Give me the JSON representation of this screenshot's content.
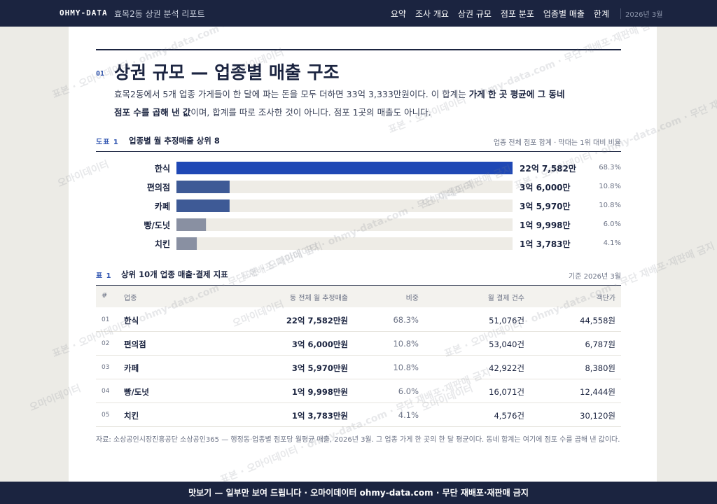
{
  "header": {
    "brand": "OHMY-DATA",
    "title": "효목2동 상권 분석 리포트",
    "links": [
      "요약",
      "조사 개요",
      "상권 규모",
      "점포 분포",
      "업종별 매출",
      "한계"
    ],
    "date": "2026년 3월"
  },
  "section": {
    "number": "01",
    "title": "상권 규모 — 업종별 매출 구조",
    "paragraph": [
      "효목2동에서 5개 업종 가게들이 한 달에 파는 돈을 모두 더하면 33억 3,333만원이다. 이 합계는 ",
      "가게 한 곳 평균에 그 동네 점포 수를 곱해 낸 값",
      "이며, 합계를 따로 조사한 것이 아니다. 점포 1곳의 매출도 아니다."
    ]
  },
  "chart_data": {
    "type": "bar",
    "label": "도표 1",
    "title": "업종별 월 추정매출 상위 8",
    "note": "업종 전체 점포 합계 · 막대는 1위 대비 비율",
    "categories": [
      "한식",
      "편의점",
      "카페",
      "빵/도넛",
      "치킨"
    ],
    "values": [
      2275820000,
      360000000,
      359700000,
      199980000,
      137830000
    ],
    "value_labels": [
      "22억 7,582만",
      "3억 6,000만",
      "3억 5,970만",
      "1억 9,998만",
      "1억 3,783만"
    ],
    "shares": [
      68.3,
      10.8,
      10.8,
      6.0,
      4.1
    ],
    "share_labels": [
      "68.3%",
      "10.8%",
      "10.8%",
      "6.0%",
      "4.1%"
    ],
    "colors": [
      "#1f48b5",
      "#3e5a96",
      "#3e5a96",
      "#8990a2",
      "#8990a2"
    ],
    "track_color": "#eeece6"
  },
  "table": {
    "label": "표 1",
    "title": "상위 10개 업종 매출·결제 지표",
    "note": "기준 2026년 3월",
    "headers": [
      "#",
      "업종",
      "동 전체 월 추정매출",
      "비중",
      "월 결제 건수",
      "객단가"
    ],
    "rows": [
      [
        "01",
        "한식",
        "22억 7,582만원",
        "68.3%",
        "51,076건",
        "44,558원"
      ],
      [
        "02",
        "편의점",
        "3억 6,000만원",
        "10.8%",
        "53,040건",
        "6,787원"
      ],
      [
        "03",
        "카페",
        "3억 5,970만원",
        "10.8%",
        "42,922건",
        "8,380원"
      ],
      [
        "04",
        "빵/도넛",
        "1억 9,998만원",
        "6.0%",
        "16,071건",
        "12,444원"
      ],
      [
        "05",
        "치킨",
        "1억 3,783만원",
        "4.1%",
        "4,576건",
        "30,120원"
      ]
    ]
  },
  "source": "자료: 소상공인시장진흥공단 소상공인365 — 행정동·업종별 점포당 월평균 매출, 2026년 3월. 그 업종 가게 한 곳의 한 달 평균이다. 동네 합계는 여기에 점포 수를 곱해 낸 값이다.",
  "footer": "맛보기 — 일부만 보여 드립니다 · 오마이데이터 ohmy-data.com · 무단 재배포·재판매 금지",
  "watermark": [
    "오마이데이터",
    "표본 · 오마이데이터 · ohmy-data.com · 무단 재배포·재판매 금지"
  ]
}
